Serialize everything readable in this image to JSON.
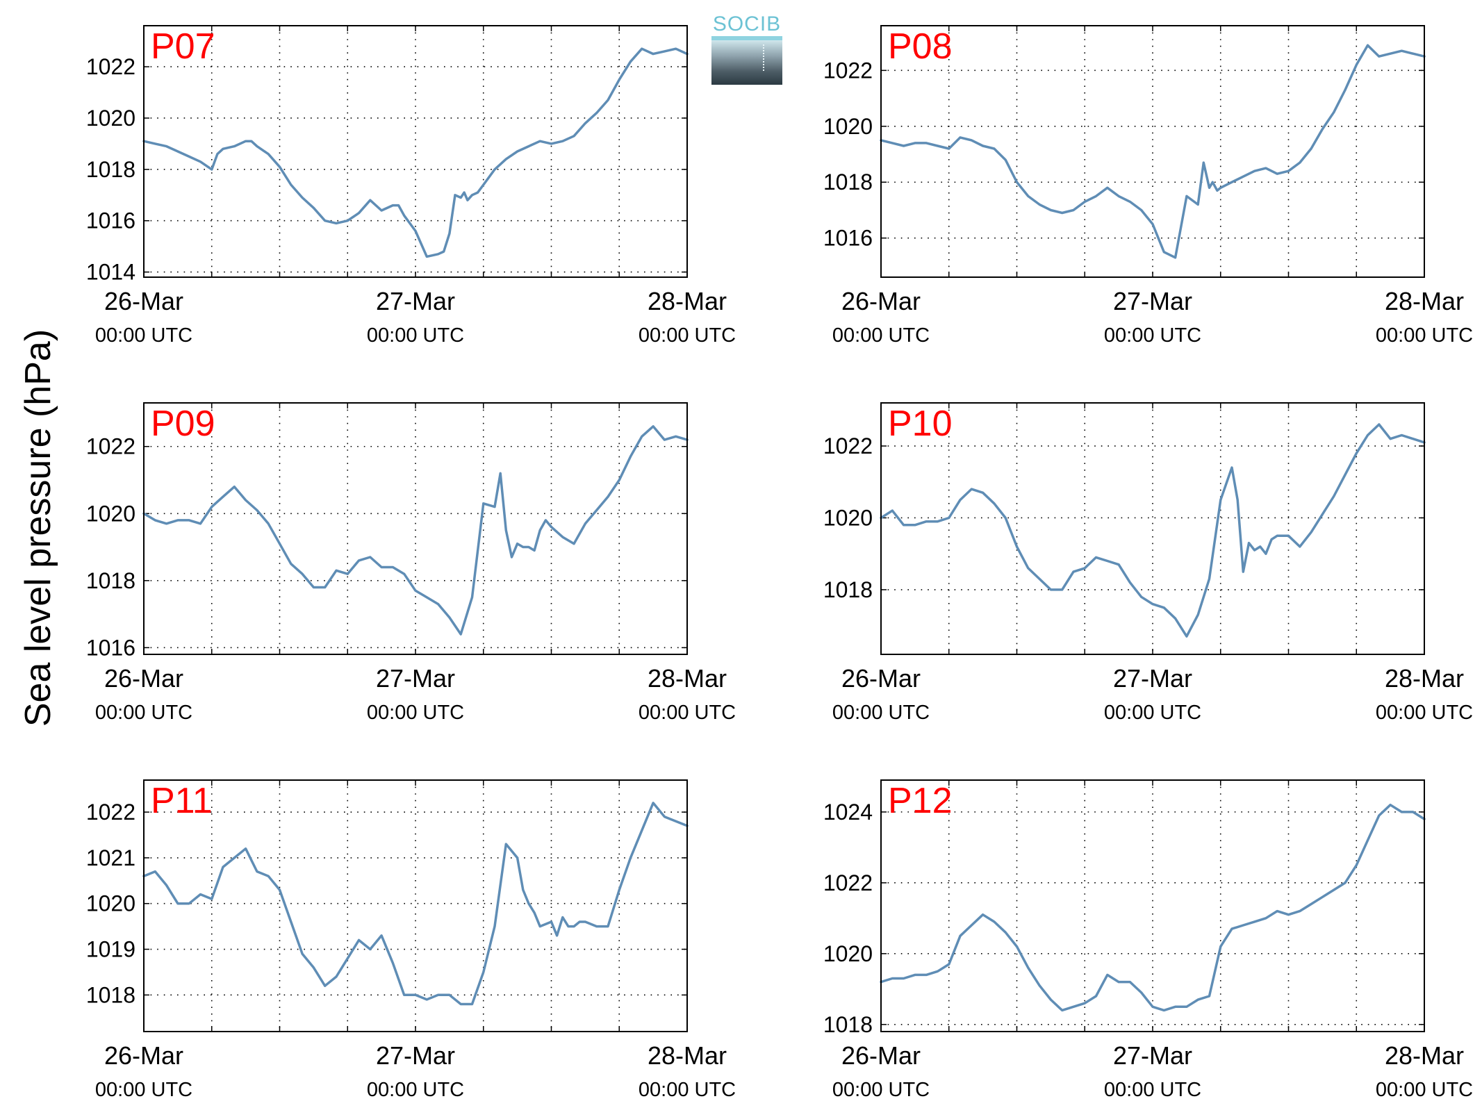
{
  "figure": {
    "ylabel": "Sea level pressure (hPa)",
    "logo_text": "SOCIB",
    "line_color": "#5f8db5",
    "label_color": "#ff0000"
  },
  "chart_data": [
    {
      "type": "line",
      "title": "P07",
      "x_unit": "hours since 26-Mar 00:00 UTC",
      "xlim": [
        0,
        48
      ],
      "ylim": [
        1013.8,
        1023.6
      ],
      "yticks": [
        1014,
        1016,
        1018,
        1020,
        1022
      ],
      "xticks": [
        0,
        24,
        48
      ],
      "xticklabels": [
        [
          "26-Mar",
          "00:00 UTC"
        ],
        [
          "27-Mar",
          "00:00 UTC"
        ],
        [
          "28-Mar",
          "00:00 UTC"
        ]
      ],
      "grid": true,
      "series": [
        {
          "x": [
            0,
            1,
            2,
            3,
            4,
            5,
            6,
            6.5,
            7,
            8,
            9,
            9.5,
            10,
            11,
            12,
            13,
            14,
            15,
            16,
            17,
            18,
            19,
            20,
            21,
            22,
            22.5,
            23,
            24,
            25,
            26,
            26.5,
            27,
            27.5,
            28,
            28.3,
            28.6,
            29,
            29.5,
            30,
            31,
            32,
            33,
            34,
            35,
            36,
            37,
            38,
            39,
            40,
            41,
            42,
            43,
            44,
            45,
            46,
            47,
            48
          ],
          "y": [
            1019.1,
            1019,
            1018.9,
            1018.7,
            1018.5,
            1018.3,
            1018,
            1018.6,
            1018.8,
            1018.9,
            1019.1,
            1019.1,
            1018.9,
            1018.6,
            1018.1,
            1017.4,
            1016.9,
            1016.5,
            1016.0,
            1015.9,
            1016.0,
            1016.3,
            1016.8,
            1016.4,
            1016.6,
            1016.6,
            1016.2,
            1015.6,
            1014.6,
            1014.7,
            1014.8,
            1015.5,
            1017.0,
            1016.9,
            1017.1,
            1016.8,
            1017.0,
            1017.1,
            1017.4,
            1018.0,
            1018.4,
            1018.7,
            1018.9,
            1019.1,
            1019.0,
            1019.1,
            1019.3,
            1019.8,
            1020.2,
            1020.7,
            1021.5,
            1022.2,
            1022.7,
            1022.5,
            1022.6,
            1022.7,
            1022.5
          ]
        }
      ]
    },
    {
      "type": "line",
      "title": "P08",
      "x_unit": "hours since 26-Mar 00:00 UTC",
      "xlim": [
        0,
        48
      ],
      "ylim": [
        1014.6,
        1023.6
      ],
      "yticks": [
        1016,
        1018,
        1020,
        1022
      ],
      "xticks": [
        0,
        24,
        48
      ],
      "xticklabels": [
        [
          "26-Mar",
          "00:00 UTC"
        ],
        [
          "27-Mar",
          "00:00 UTC"
        ],
        [
          "28-Mar",
          "00:00 UTC"
        ]
      ],
      "grid": true,
      "series": [
        {
          "x": [
            0,
            1,
            2,
            3,
            4,
            5,
            6,
            7,
            8,
            9,
            10,
            11,
            12,
            13,
            14,
            15,
            16,
            17,
            18,
            19,
            20,
            21,
            22,
            23,
            24,
            25,
            26,
            27,
            28,
            28.5,
            29,
            29.3,
            29.7,
            30,
            31,
            32,
            33,
            34,
            35,
            36,
            37,
            38,
            39,
            40,
            41,
            42,
            43,
            44,
            45,
            46,
            47,
            48
          ],
          "y": [
            1019.5,
            1019.4,
            1019.3,
            1019.4,
            1019.4,
            1019.3,
            1019.2,
            1019.6,
            1019.5,
            1019.3,
            1019.2,
            1018.8,
            1018.0,
            1017.5,
            1017.2,
            1017.0,
            1016.9,
            1017.0,
            1017.3,
            1017.5,
            1017.8,
            1017.5,
            1017.3,
            1017.0,
            1016.5,
            1015.5,
            1015.3,
            1017.5,
            1017.2,
            1018.7,
            1017.8,
            1018.0,
            1017.7,
            1017.8,
            1018.0,
            1018.2,
            1018.4,
            1018.5,
            1018.3,
            1018.4,
            1018.7,
            1019.2,
            1019.9,
            1020.5,
            1021.3,
            1022.2,
            1022.9,
            1022.5,
            1022.6,
            1022.7,
            1022.6,
            1022.5
          ]
        }
      ]
    },
    {
      "type": "line",
      "title": "P09",
      "x_unit": "hours since 26-Mar 00:00 UTC",
      "xlim": [
        0,
        48
      ],
      "ylim": [
        1015.8,
        1023.3
      ],
      "yticks": [
        1016,
        1018,
        1020,
        1022
      ],
      "xticks": [
        0,
        24,
        48
      ],
      "xticklabels": [
        [
          "26-Mar",
          "00:00 UTC"
        ],
        [
          "27-Mar",
          "00:00 UTC"
        ],
        [
          "28-Mar",
          "00:00 UTC"
        ]
      ],
      "grid": true,
      "series": [
        {
          "x": [
            0,
            1,
            2,
            3,
            4,
            5,
            6,
            7,
            8,
            9,
            10,
            11,
            12,
            13,
            14,
            15,
            16,
            17,
            18,
            19,
            20,
            21,
            22,
            23,
            24,
            25,
            26,
            27,
            28,
            29,
            30,
            31,
            31.5,
            32,
            32.5,
            33,
            33.5,
            34,
            34.5,
            35,
            35.5,
            36,
            37,
            38,
            39,
            40,
            41,
            42,
            43,
            44,
            45,
            46,
            47,
            48
          ],
          "y": [
            1020.0,
            1019.8,
            1019.7,
            1019.8,
            1019.8,
            1019.7,
            1020.2,
            1020.5,
            1020.8,
            1020.4,
            1020.1,
            1019.7,
            1019.1,
            1018.5,
            1018.2,
            1017.8,
            1017.8,
            1018.3,
            1018.2,
            1018.6,
            1018.7,
            1018.4,
            1018.4,
            1018.2,
            1017.7,
            1017.5,
            1017.3,
            1016.9,
            1016.4,
            1017.5,
            1020.3,
            1020.2,
            1021.2,
            1019.5,
            1018.7,
            1019.1,
            1019.0,
            1019.0,
            1018.9,
            1019.5,
            1019.8,
            1019.6,
            1019.3,
            1019.1,
            1019.7,
            1020.1,
            1020.5,
            1021.0,
            1021.7,
            1022.3,
            1022.6,
            1022.2,
            1022.3,
            1022.2
          ]
        }
      ]
    },
    {
      "type": "line",
      "title": "P10",
      "x_unit": "hours since 26-Mar 00:00 UTC",
      "xlim": [
        0,
        48
      ],
      "ylim": [
        1016.2,
        1023.2
      ],
      "yticks": [
        1018,
        1020,
        1022
      ],
      "xticks": [
        0,
        24,
        48
      ],
      "xticklabels": [
        [
          "26-Mar",
          "00:00 UTC"
        ],
        [
          "27-Mar",
          "00:00 UTC"
        ],
        [
          "28-Mar",
          "00:00 UTC"
        ]
      ],
      "grid": true,
      "series": [
        {
          "x": [
            0,
            1,
            2,
            3,
            4,
            5,
            6,
            7,
            8,
            9,
            10,
            11,
            12,
            13,
            14,
            15,
            16,
            17,
            18,
            19,
            20,
            21,
            22,
            23,
            24,
            25,
            26,
            27,
            28,
            29,
            30,
            31,
            31.5,
            32,
            32.5,
            33,
            33.5,
            34,
            34.5,
            35,
            36,
            37,
            38,
            39,
            40,
            41,
            42,
            43,
            44,
            45,
            46,
            47,
            48
          ],
          "y": [
            1020.0,
            1020.2,
            1019.8,
            1019.8,
            1019.9,
            1019.9,
            1020.0,
            1020.5,
            1020.8,
            1020.7,
            1020.4,
            1020.0,
            1019.2,
            1018.6,
            1018.3,
            1018.0,
            1018.0,
            1018.5,
            1018.6,
            1018.9,
            1018.8,
            1018.7,
            1018.2,
            1017.8,
            1017.6,
            1017.5,
            1017.2,
            1016.7,
            1017.3,
            1018.3,
            1020.5,
            1021.4,
            1020.5,
            1018.5,
            1019.3,
            1019.1,
            1019.2,
            1019.0,
            1019.4,
            1019.5,
            1019.5,
            1019.2,
            1019.6,
            1020.1,
            1020.6,
            1021.2,
            1021.8,
            1022.3,
            1022.6,
            1022.2,
            1022.3,
            1022.2,
            1022.1
          ]
        }
      ]
    },
    {
      "type": "line",
      "title": "P11",
      "x_unit": "hours since 26-Mar 00:00 UTC",
      "xlim": [
        0,
        48
      ],
      "ylim": [
        1017.2,
        1022.7
      ],
      "yticks": [
        1018,
        1019,
        1020,
        1021,
        1022
      ],
      "xticks": [
        0,
        24,
        48
      ],
      "xticklabels": [
        [
          "26-Mar",
          "00:00 UTC"
        ],
        [
          "27-Mar",
          "00:00 UTC"
        ],
        [
          "28-Mar",
          "00:00 UTC"
        ]
      ],
      "grid": true,
      "series": [
        {
          "x": [
            0,
            1,
            2,
            3,
            4,
            5,
            6,
            7,
            8,
            9,
            10,
            11,
            12,
            13,
            14,
            15,
            16,
            17,
            18,
            19,
            20,
            21,
            22,
            23,
            24,
            25,
            26,
            27,
            28,
            29,
            30,
            31,
            32,
            33,
            33.5,
            34,
            34.5,
            35,
            36,
            36.5,
            37,
            37.5,
            38,
            38.5,
            39,
            40,
            41,
            42,
            43,
            44,
            45,
            46,
            47,
            48
          ],
          "y": [
            1020.6,
            1020.7,
            1020.4,
            1020.0,
            1020.0,
            1020.2,
            1020.1,
            1020.8,
            1021.0,
            1021.2,
            1020.7,
            1020.6,
            1020.3,
            1019.6,
            1018.9,
            1018.6,
            1018.2,
            1018.4,
            1018.8,
            1019.2,
            1019.0,
            1019.3,
            1018.7,
            1018.0,
            1018.0,
            1017.9,
            1018.0,
            1018.0,
            1017.8,
            1017.8,
            1018.5,
            1019.5,
            1021.3,
            1021.0,
            1020.3,
            1020.0,
            1019.8,
            1019.5,
            1019.6,
            1019.3,
            1019.7,
            1019.5,
            1019.5,
            1019.6,
            1019.6,
            1019.5,
            1019.5,
            1020.3,
            1021.0,
            1021.6,
            1022.2,
            1021.9,
            1021.8,
            1021.7
          ]
        }
      ]
    },
    {
      "type": "line",
      "title": "P12",
      "x_unit": "hours since 26-Mar 00:00 UTC",
      "xlim": [
        0,
        48
      ],
      "ylim": [
        1017.8,
        1024.9
      ],
      "yticks": [
        1018,
        1020,
        1022,
        1024
      ],
      "xticks": [
        0,
        24,
        48
      ],
      "xticklabels": [
        [
          "26-Mar",
          "00:00 UTC"
        ],
        [
          "27-Mar",
          "00:00 UTC"
        ],
        [
          "28-Mar",
          "00:00 UTC"
        ]
      ],
      "grid": true,
      "series": [
        {
          "x": [
            0,
            1,
            2,
            3,
            4,
            5,
            6,
            7,
            8,
            9,
            10,
            11,
            12,
            13,
            14,
            15,
            16,
            17,
            18,
            19,
            20,
            21,
            22,
            23,
            24,
            25,
            26,
            27,
            28,
            29,
            30,
            31,
            32,
            33,
            34,
            35,
            36,
            37,
            38,
            39,
            40,
            41,
            42,
            43,
            44,
            45,
            46,
            47,
            48
          ],
          "y": [
            1019.2,
            1019.3,
            1019.3,
            1019.4,
            1019.4,
            1019.5,
            1019.7,
            1020.5,
            1020.8,
            1021.1,
            1020.9,
            1020.6,
            1020.2,
            1019.6,
            1019.1,
            1018.7,
            1018.4,
            1018.5,
            1018.6,
            1018.8,
            1019.4,
            1019.2,
            1019.2,
            1018.9,
            1018.5,
            1018.4,
            1018.5,
            1018.5,
            1018.7,
            1018.8,
            1020.2,
            1020.7,
            1020.8,
            1020.9,
            1021.0,
            1021.2,
            1021.1,
            1021.2,
            1021.4,
            1021.6,
            1021.8,
            1022.0,
            1022.5,
            1023.2,
            1023.9,
            1024.2,
            1024.0,
            1024.0,
            1023.8
          ]
        }
      ]
    }
  ]
}
